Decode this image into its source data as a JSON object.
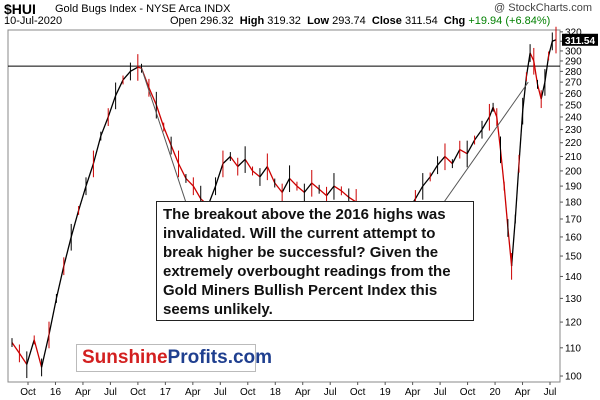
{
  "header": {
    "ticker": "$HUI",
    "name": "Gold Bugs Index - NYSE Arca  INDX",
    "date": "10-Jul-2020",
    "watermark": "@ StockCharts.com",
    "open_label": "Open",
    "open": "296.32",
    "high_label": "High",
    "high": "319.32",
    "low_label": "Low",
    "low": "293.74",
    "close_label": "Close",
    "close": "311.54",
    "chg_label": "Chg",
    "chg": "+19.94 (+6.84%)"
  },
  "callout": {
    "text": "The breakout above the 2016 highs was invalidated. Will the current attempt to break higher be successful? Given the extremely overbought readings from the Gold Miners Bullish Percent Index this seems unlikely."
  },
  "logo": {
    "part1": "Sunshine",
    "part2": "Profits.com"
  },
  "colors": {
    "up": "#000000",
    "down": "#cc0000",
    "last_price_badge": "#000000",
    "resistance_line": "#000000"
  },
  "chart_data": {
    "type": "line",
    "title": "$HUI Gold Bugs Index - NYSE Arca INDX",
    "scale": "log",
    "ylim": [
      98,
      322
    ],
    "y_ticks": [
      100,
      110,
      120,
      130,
      140,
      150,
      160,
      170,
      180,
      190,
      200,
      210,
      220,
      230,
      240,
      250,
      260,
      270,
      280,
      290,
      300,
      310,
      320
    ],
    "x_ticks": [
      "Oct",
      "16",
      "Apr",
      "Jul",
      "Oct",
      "17",
      "Apr",
      "Jul",
      "Oct",
      "18",
      "Apr",
      "Jul",
      "Oct",
      "19",
      "Apr",
      "Jul",
      "Oct",
      "20",
      "Apr",
      "Jul"
    ],
    "last_price": "311.54",
    "resistance_level": 285,
    "series": [
      {
        "values": [
          [
            0,
            112
          ],
          [
            4,
            108
          ],
          [
            8,
            104
          ],
          [
            12,
            113
          ],
          [
            16,
            103
          ],
          [
            20,
            115
          ],
          [
            24,
            130
          ],
          [
            28,
            145
          ],
          [
            32,
            160
          ],
          [
            36,
            175
          ],
          [
            40,
            190
          ],
          [
            44,
            205
          ],
          [
            48,
            225
          ],
          [
            52,
            240
          ],
          [
            56,
            258
          ],
          [
            60,
            272
          ],
          [
            64,
            280
          ],
          [
            68,
            284
          ],
          [
            70,
            283
          ],
          [
            74,
            265
          ],
          [
            78,
            250
          ],
          [
            82,
            232
          ],
          [
            86,
            218
          ],
          [
            90,
            205
          ],
          [
            94,
            195
          ],
          [
            98,
            190
          ],
          [
            102,
            182
          ],
          [
            106,
            178
          ],
          [
            110,
            190
          ],
          [
            114,
            205
          ],
          [
            118,
            210
          ],
          [
            122,
            203
          ],
          [
            126,
            208
          ],
          [
            130,
            200
          ],
          [
            134,
            196
          ],
          [
            138,
            203
          ],
          [
            142,
            192
          ],
          [
            146,
            186
          ],
          [
            150,
            195
          ],
          [
            154,
            190
          ],
          [
            158,
            186
          ],
          [
            162,
            192
          ],
          [
            166,
            188
          ],
          [
            170,
            184
          ],
          [
            174,
            190
          ],
          [
            178,
            187
          ],
          [
            182,
            183
          ],
          [
            186,
            180
          ],
          [
            190,
            178
          ],
          [
            194,
            175
          ],
          [
            198,
            170
          ],
          [
            202,
            168
          ],
          [
            206,
            166
          ],
          [
            210,
            170
          ],
          [
            214,
            175
          ],
          [
            218,
            182
          ],
          [
            222,
            190
          ],
          [
            226,
            196
          ],
          [
            230,
            204
          ],
          [
            234,
            210
          ],
          [
            238,
            205
          ],
          [
            242,
            215
          ],
          [
            246,
            212
          ],
          [
            250,
            222
          ],
          [
            254,
            230
          ],
          [
            258,
            240
          ],
          [
            260,
            248
          ],
          [
            262,
            240
          ],
          [
            264,
            215
          ],
          [
            266,
            190
          ],
          [
            268,
            165
          ],
          [
            270,
            145
          ],
          [
            272,
            170
          ],
          [
            274,
            205
          ],
          [
            276,
            245
          ],
          [
            278,
            275
          ],
          [
            280,
            298
          ],
          [
            282,
            290
          ],
          [
            284,
            268
          ],
          [
            286,
            255
          ],
          [
            288,
            270
          ],
          [
            290,
            295
          ],
          [
            292,
            310
          ],
          [
            294,
            311.54
          ]
        ]
      }
    ]
  }
}
